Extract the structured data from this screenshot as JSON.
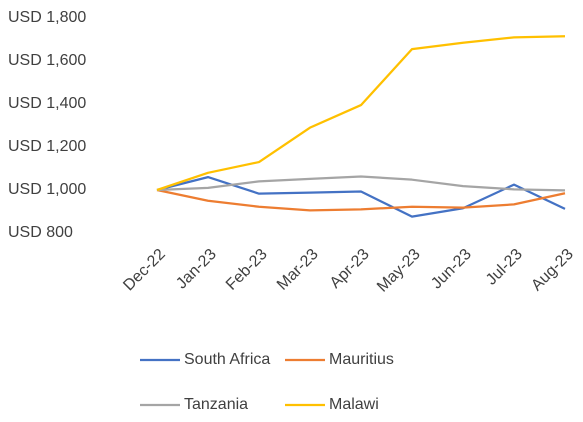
{
  "chart_data": {
    "type": "line",
    "categories": [
      "Dec-22",
      "Jan-23",
      "Feb-23",
      "Mar-23",
      "Apr-23",
      "May-23",
      "Jun-23",
      "Jul-23",
      "Aug-23"
    ],
    "series": [
      {
        "name": "South Africa",
        "color": "#4472c4",
        "values": [
          1000,
          1060,
          983,
          988,
          993,
          876,
          915,
          1025,
          912
        ]
      },
      {
        "name": "Mauritius",
        "color": "#ed7d31",
        "values": [
          1000,
          950,
          922,
          905,
          910,
          922,
          918,
          933,
          985
        ]
      },
      {
        "name": "Tanzania",
        "color": "#a5a5a5",
        "values": [
          1000,
          1010,
          1040,
          1052,
          1063,
          1048,
          1018,
          1003,
          998
        ]
      },
      {
        "name": "Malawi",
        "color": "#ffc000",
        "values": [
          1000,
          1080,
          1130,
          1290,
          1395,
          1655,
          1685,
          1710,
          1715
        ]
      }
    ],
    "ylim": [
      800,
      1800
    ],
    "yticks": [
      {
        "value": 800,
        "label": "USD 800"
      },
      {
        "value": 1000,
        "label": "USD 1,000"
      },
      {
        "value": 1200,
        "label": "USD 1,200"
      },
      {
        "value": 1400,
        "label": "USD 1,400"
      },
      {
        "value": 1600,
        "label": "USD 1,600"
      },
      {
        "value": 1800,
        "label": "USD 1,800"
      }
    ],
    "grid": false,
    "legend": "bottom"
  }
}
